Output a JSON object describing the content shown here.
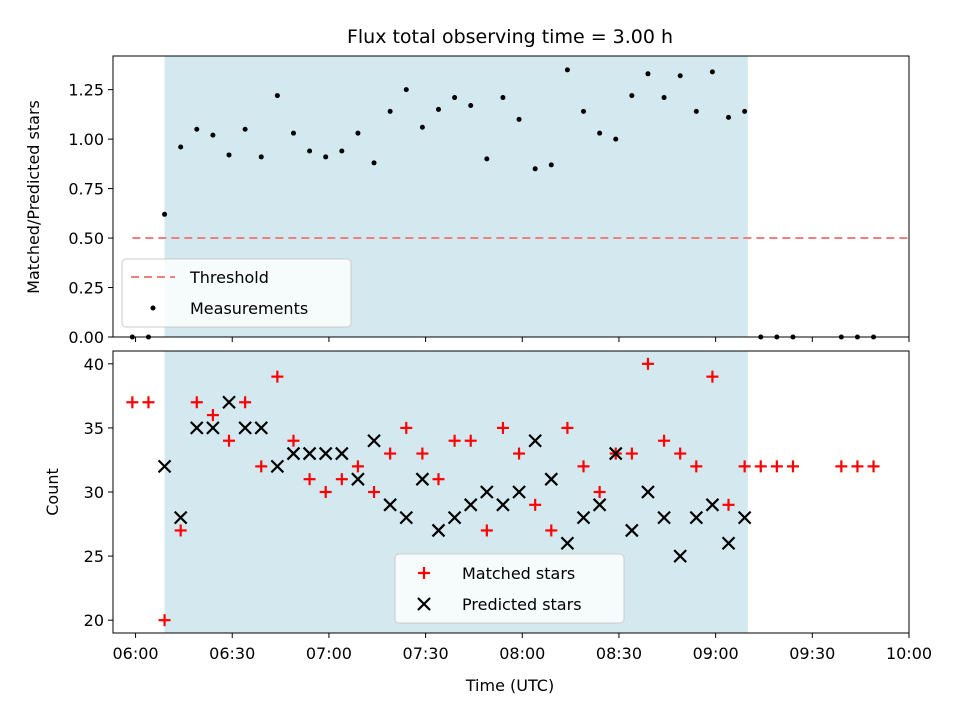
{
  "chart_data": [
    {
      "type": "scatter",
      "title": "Flux total observing time = 3.00 h",
      "ylabel": "Matched/Predicted stars",
      "xlabel": "",
      "x_unit": "time of day",
      "ylim": [
        0,
        1.42
      ],
      "xlim": [
        "05:53",
        "10:00"
      ],
      "yticks": [
        "0.00",
        "0.25",
        "0.50",
        "0.75",
        "1.00",
        "1.25"
      ],
      "ytick_values": [
        0,
        0.25,
        0.5,
        0.75,
        1.0,
        1.25
      ],
      "shaded_span": [
        "06:09",
        "09:10"
      ],
      "shaded_color": "#d3e9ef",
      "legend_position": "lower-left",
      "threshold": {
        "name": "Threshold",
        "value": 0.5,
        "x_range": [
          "05:59",
          "10:00"
        ],
        "color": "#f08080"
      },
      "series": [
        {
          "name": "Measurements",
          "color": "#000000",
          "x": [
            "05:59",
            "06:04",
            "06:09",
            "06:14",
            "06:19",
            "06:24",
            "06:29",
            "06:34",
            "06:39",
            "06:44",
            "06:49",
            "06:54",
            "06:59",
            "07:04",
            "07:09",
            "07:14",
            "07:19",
            "07:24",
            "07:29",
            "07:34",
            "07:39",
            "07:44",
            "07:49",
            "07:54",
            "07:59",
            "08:04",
            "08:09",
            "08:14",
            "08:19",
            "08:24",
            "08:29",
            "08:34",
            "08:39",
            "08:44",
            "08:49",
            "08:54",
            "08:59",
            "09:04",
            "09:09",
            "09:14",
            "09:19",
            "09:24",
            "09:39",
            "09:44",
            "09:49"
          ],
          "y": [
            0.0,
            0.0,
            0.62,
            0.96,
            1.05,
            1.02,
            0.92,
            1.05,
            0.91,
            1.22,
            1.03,
            0.94,
            0.91,
            0.94,
            1.03,
            0.88,
            1.14,
            1.25,
            1.06,
            1.15,
            1.21,
            1.17,
            0.9,
            1.21,
            1.1,
            0.85,
            0.87,
            1.35,
            1.14,
            1.03,
            1.0,
            1.22,
            1.33,
            1.21,
            1.32,
            1.14,
            1.34,
            1.11,
            1.14,
            0.0,
            0.0,
            0.0,
            0.0,
            0.0,
            0.0
          ]
        }
      ]
    },
    {
      "type": "scatter",
      "title": "",
      "ylabel": "Count",
      "xlabel": "Time (UTC)",
      "ylim": [
        19,
        41
      ],
      "xlim": [
        "05:53",
        "10:00"
      ],
      "yticks": [
        "20",
        "25",
        "30",
        "35",
        "40"
      ],
      "ytick_values": [
        20,
        25,
        30,
        35,
        40
      ],
      "xticks": [
        "06:00",
        "06:30",
        "07:00",
        "07:30",
        "08:00",
        "08:30",
        "09:00",
        "09:30",
        "10:00"
      ],
      "shaded_span": [
        "06:09",
        "09:10"
      ],
      "shaded_color": "#d3e9ef",
      "legend_position": "lower-center",
      "series": [
        {
          "name": "Matched stars",
          "marker": "plus",
          "color": "#ff0000",
          "x": [
            "05:59",
            "06:04",
            "06:09",
            "06:14",
            "06:19",
            "06:24",
            "06:29",
            "06:34",
            "06:39",
            "06:44",
            "06:49",
            "06:54",
            "06:59",
            "07:04",
            "07:09",
            "07:14",
            "07:19",
            "07:24",
            "07:29",
            "07:34",
            "07:39",
            "07:44",
            "07:49",
            "07:54",
            "07:59",
            "08:04",
            "08:09",
            "08:14",
            "08:19",
            "08:24",
            "08:29",
            "08:34",
            "08:39",
            "08:44",
            "08:49",
            "08:54",
            "08:59",
            "09:04",
            "09:09",
            "09:14",
            "09:19",
            "09:24",
            "09:39",
            "09:44",
            "09:49"
          ],
          "y": [
            37,
            37,
            20,
            27,
            37,
            36,
            34,
            37,
            32,
            39,
            34,
            31,
            30,
            31,
            32,
            30,
            33,
            35,
            33,
            31,
            34,
            34,
            27,
            35,
            33,
            29,
            27,
            35,
            32,
            30,
            33,
            33,
            40,
            34,
            33,
            32,
            39,
            29,
            32,
            32,
            32,
            32,
            32,
            32,
            32
          ]
        },
        {
          "name": "Predicted stars",
          "marker": "x",
          "color": "#000000",
          "x": [
            "06:09",
            "06:14",
            "06:19",
            "06:24",
            "06:29",
            "06:34",
            "06:39",
            "06:44",
            "06:49",
            "06:54",
            "06:59",
            "07:04",
            "07:09",
            "07:14",
            "07:19",
            "07:24",
            "07:29",
            "07:34",
            "07:39",
            "07:44",
            "07:49",
            "07:54",
            "07:59",
            "08:04",
            "08:09",
            "08:14",
            "08:19",
            "08:24",
            "08:29",
            "08:34",
            "08:39",
            "08:44",
            "08:49",
            "08:54",
            "08:59",
            "09:04",
            "09:09"
          ],
          "y": [
            32,
            28,
            35,
            35,
            37,
            35,
            35,
            32,
            33,
            33,
            33,
            33,
            31,
            34,
            29,
            28,
            31,
            27,
            28,
            29,
            30,
            29,
            30,
            34,
            31,
            26,
            28,
            29,
            33,
            27,
            30,
            28,
            25,
            28,
            29,
            26,
            28
          ]
        }
      ]
    }
  ]
}
